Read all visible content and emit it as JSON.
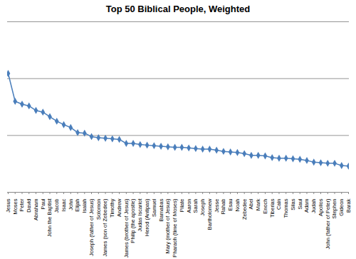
{
  "chart_data": {
    "type": "line",
    "title": "Top 50 Biblical People, Weighted",
    "categories": [
      "Jesus",
      "Moses",
      "Peter",
      "David",
      "Abraham",
      "Paul",
      "John the Baptist",
      "Jacob",
      "Isaac",
      "John",
      "Elijah",
      "Isaiah",
      "Joseph (father of Jesus)",
      "Solomon",
      "James (son of Zebedee)",
      "Timothy",
      "Andrew",
      "James (brother of Jesus)",
      "Philip (the apostle)",
      "Judas Iscariot",
      "Herod (Antipas)",
      "Samuel",
      "Barnabas",
      "Mary (mother of Jesus)",
      "Pharaoh (time of Moses)",
      "Pilate",
      "Aaron",
      "Sarah",
      "Joseph",
      "Bartholomew",
      "Jesse",
      "Rahab",
      "Esau",
      "Noah",
      "Zebedee",
      "Abel",
      "Mark",
      "Enoch",
      "Tiberias",
      "Cain",
      "Thomas",
      "Silas",
      "Saul",
      "Adam",
      "Judah",
      "Apollos",
      "John (father of Peter)",
      "Stephen",
      "Gideon",
      "Barak"
    ],
    "values": [
      2.09,
      1.6,
      1.55,
      1.52,
      1.44,
      1.41,
      1.33,
      1.25,
      1.19,
      1.14,
      1.05,
      1.04,
      0.98,
      0.96,
      0.95,
      0.94,
      0.93,
      0.86,
      0.86,
      0.84,
      0.83,
      0.82,
      0.81,
      0.8,
      0.79,
      0.79,
      0.78,
      0.77,
      0.76,
      0.76,
      0.74,
      0.72,
      0.71,
      0.7,
      0.68,
      0.65,
      0.65,
      0.64,
      0.61,
      0.6,
      0.6,
      0.59,
      0.58,
      0.56,
      0.53,
      0.52,
      0.51,
      0.51,
      0.47,
      0.46
    ],
    "color": "#4a7ebb",
    "marker": "diamond",
    "ylim": [
      0,
      3
    ],
    "yticks": [
      0,
      1,
      2,
      3
    ],
    "grid": true,
    "tick_labels": "x"
  }
}
